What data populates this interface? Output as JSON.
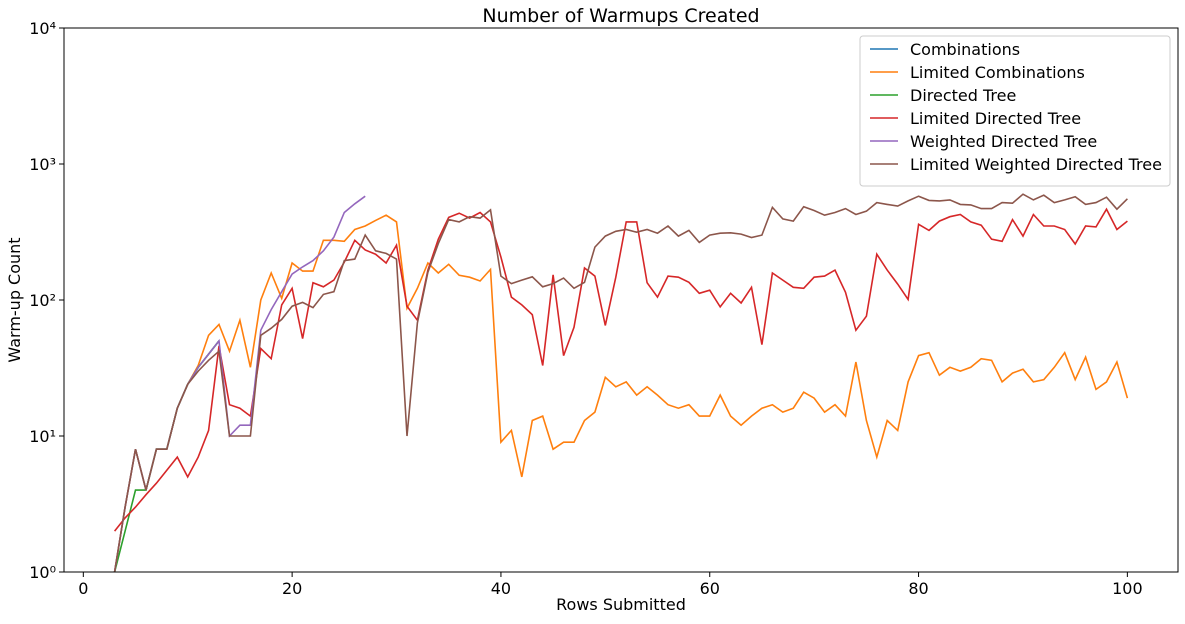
{
  "chart_data": {
    "type": "line",
    "title": "Number of Warmups Created",
    "xlabel": "Rows Submitted",
    "ylabel": "Warm-up Count",
    "xlim": [
      -1.85,
      104.85
    ],
    "xticks": [
      0,
      20,
      40,
      60,
      80,
      100
    ],
    "ylim": [
      1,
      10000
    ],
    "yscale": "log",
    "yticks": [
      {
        "value": 1,
        "label": "10⁰"
      },
      {
        "value": 10,
        "label": "10¹"
      },
      {
        "value": 100,
        "label": "10²"
      },
      {
        "value": 1000,
        "label": "10³"
      },
      {
        "value": 10000,
        "label": "10⁴"
      }
    ],
    "legend": "upper right",
    "series": [
      {
        "name": "Combinations",
        "color": "#1f77b4",
        "x": [
          3,
          4,
          5,
          6,
          7,
          8,
          9,
          10,
          11,
          12,
          13
        ],
        "values": [
          1,
          3,
          8,
          4,
          8,
          8,
          16,
          24,
          32,
          40,
          50
        ]
      },
      {
        "name": "Limited Combinations",
        "color": "#ff7f0e",
        "x": [
          3,
          4,
          5,
          6,
          7,
          8,
          9,
          10,
          11,
          12,
          13,
          14,
          15,
          16,
          17,
          18,
          19,
          20,
          21,
          22,
          23,
          24,
          25,
          26,
          27,
          28,
          29,
          30,
          31,
          32,
          33,
          34,
          35,
          36,
          37,
          38,
          39,
          40,
          41,
          42,
          43,
          44,
          45,
          46,
          47,
          48,
          49,
          50,
          51,
          52,
          53,
          54,
          55,
          56,
          57,
          58,
          59,
          60,
          61,
          62,
          63,
          64,
          65,
          66,
          67,
          68,
          69,
          70,
          71,
          72,
          73,
          74,
          75,
          76,
          77,
          78,
          79,
          80,
          81,
          82,
          83,
          84,
          85,
          86,
          87,
          88,
          89,
          90,
          91,
          92,
          93,
          94,
          95,
          96,
          97,
          98,
          99,
          100
        ],
        "values": [
          1,
          3,
          8,
          4,
          8,
          8,
          16,
          24,
          33,
          55,
          66,
          42,
          71,
          32,
          100,
          158,
          103,
          187,
          163,
          163,
          275,
          275,
          270,
          330,
          350,
          385,
          420,
          375,
          87,
          122,
          187,
          158,
          183,
          152,
          147,
          138,
          168,
          9,
          11,
          5,
          13,
          14,
          8,
          9,
          9,
          13,
          15,
          27,
          23,
          25,
          20,
          23,
          20,
          17,
          16,
          17,
          14,
          14,
          20,
          14,
          12,
          14,
          16,
          17,
          15,
          16,
          21,
          19,
          15,
          17,
          14,
          35,
          13,
          7,
          13,
          11,
          25,
          39,
          41,
          28,
          32,
          30,
          32,
          37,
          36,
          25,
          29,
          31,
          25,
          26,
          32,
          41,
          26,
          38,
          22,
          25,
          35,
          19
        ]
      },
      {
        "name": "Directed Tree",
        "color": "#2ca02c",
        "x": [
          3,
          4,
          5,
          6,
          7,
          8,
          9,
          10,
          11,
          12,
          13
        ],
        "values": [
          1,
          2,
          4,
          4,
          8,
          8,
          16,
          24,
          32,
          40,
          50
        ]
      },
      {
        "name": "Limited Directed Tree",
        "color": "#d62728",
        "x": [
          3,
          4,
          5,
          6,
          7,
          8,
          9,
          10,
          11,
          12,
          13,
          14,
          15,
          16,
          17,
          18,
          19,
          20,
          21,
          22,
          23,
          24,
          25,
          26,
          27,
          28,
          29,
          30,
          31,
          32,
          33,
          34,
          35,
          36,
          37,
          38,
          39,
          40,
          41,
          42,
          43,
          44,
          45,
          46,
          47,
          48,
          49,
          50,
          51,
          52,
          53,
          54,
          55,
          56,
          57,
          58,
          59,
          60,
          61,
          62,
          63,
          64,
          65,
          66,
          67,
          68,
          69,
          70,
          71,
          72,
          73,
          74,
          75,
          76,
          77,
          78,
          79,
          80,
          81,
          82,
          83,
          84,
          85,
          86,
          87,
          88,
          89,
          90,
          91,
          92,
          93,
          94,
          95,
          96,
          97,
          98,
          99,
          100
        ],
        "values": [
          2,
          2.5,
          3,
          3.7,
          4.5,
          5.6,
          7,
          5,
          7,
          11,
          46,
          17,
          16,
          14,
          44,
          37,
          92,
          122,
          52,
          134,
          125,
          140,
          190,
          275,
          233,
          217,
          187,
          253,
          90,
          71,
          166,
          280,
          405,
          435,
          400,
          440,
          375,
          207,
          105,
          92,
          78,
          33,
          153,
          39,
          63,
          172,
          150,
          65,
          147,
          375,
          375,
          134,
          105,
          150,
          147,
          135,
          112,
          118,
          89,
          112,
          95,
          124,
          47,
          158,
          140,
          124,
          122,
          147,
          150,
          166,
          114,
          60,
          76,
          217,
          166,
          131,
          101,
          360,
          325,
          380,
          410,
          425,
          375,
          355,
          280,
          270,
          390,
          295,
          425,
          350,
          350,
          330,
          258,
          350,
          345,
          465,
          330,
          380
        ]
      },
      {
        "name": "Weighted Directed Tree",
        "color": "#9467bd",
        "x": [
          3,
          4,
          5,
          6,
          7,
          8,
          9,
          10,
          11,
          12,
          13,
          14,
          15,
          16,
          17,
          18,
          19,
          20,
          21,
          22,
          23,
          24,
          25,
          26,
          27
        ],
        "values": [
          1,
          3,
          8,
          4,
          8,
          8,
          16,
          24,
          32,
          40,
          50,
          10,
          12,
          12,
          60,
          85,
          115,
          155,
          175,
          195,
          230,
          290,
          440,
          510,
          580
        ]
      },
      {
        "name": "Limited Weighted Directed Tree",
        "color": "#8c564b",
        "x": [
          3,
          4,
          5,
          6,
          7,
          8,
          9,
          10,
          11,
          12,
          13,
          14,
          15,
          16,
          17,
          18,
          19,
          20,
          21,
          22,
          23,
          24,
          25,
          26,
          27,
          28,
          29,
          30,
          31,
          32,
          33,
          34,
          35,
          36,
          37,
          38,
          39,
          40,
          41,
          42,
          43,
          44,
          45,
          46,
          47,
          48,
          49,
          50,
          51,
          52,
          53,
          54,
          55,
          56,
          57,
          58,
          59,
          60,
          61,
          62,
          63,
          64,
          65,
          66,
          67,
          68,
          69,
          70,
          71,
          72,
          73,
          74,
          75,
          76,
          77,
          78,
          79,
          80,
          81,
          82,
          83,
          84,
          85,
          86,
          87,
          88,
          89,
          90,
          91,
          92,
          93,
          94,
          95,
          96,
          97,
          98,
          99,
          100
        ],
        "values": [
          1,
          3,
          8,
          4,
          8,
          8,
          16,
          24,
          30,
          36,
          42,
          10,
          10,
          10,
          55,
          62,
          72,
          90,
          96,
          88,
          110,
          115,
          195,
          200,
          300,
          230,
          220,
          200,
          10,
          68,
          160,
          260,
          390,
          375,
          410,
          400,
          460,
          150,
          132,
          140,
          148,
          125,
          132,
          145,
          122,
          135,
          245,
          295,
          320,
          330,
          315,
          330,
          310,
          350,
          295,
          325,
          265,
          300,
          310,
          312,
          305,
          288,
          300,
          480,
          395,
          380,
          485,
          455,
          420,
          440,
          470,
          425,
          450,
          520,
          505,
          490,
          535,
          580,
          540,
          535,
          545,
          505,
          500,
          470,
          470,
          520,
          515,
          600,
          545,
          590,
          520,
          545,
          575,
          505,
          520,
          570,
          465,
          555
        ]
      }
    ]
  }
}
